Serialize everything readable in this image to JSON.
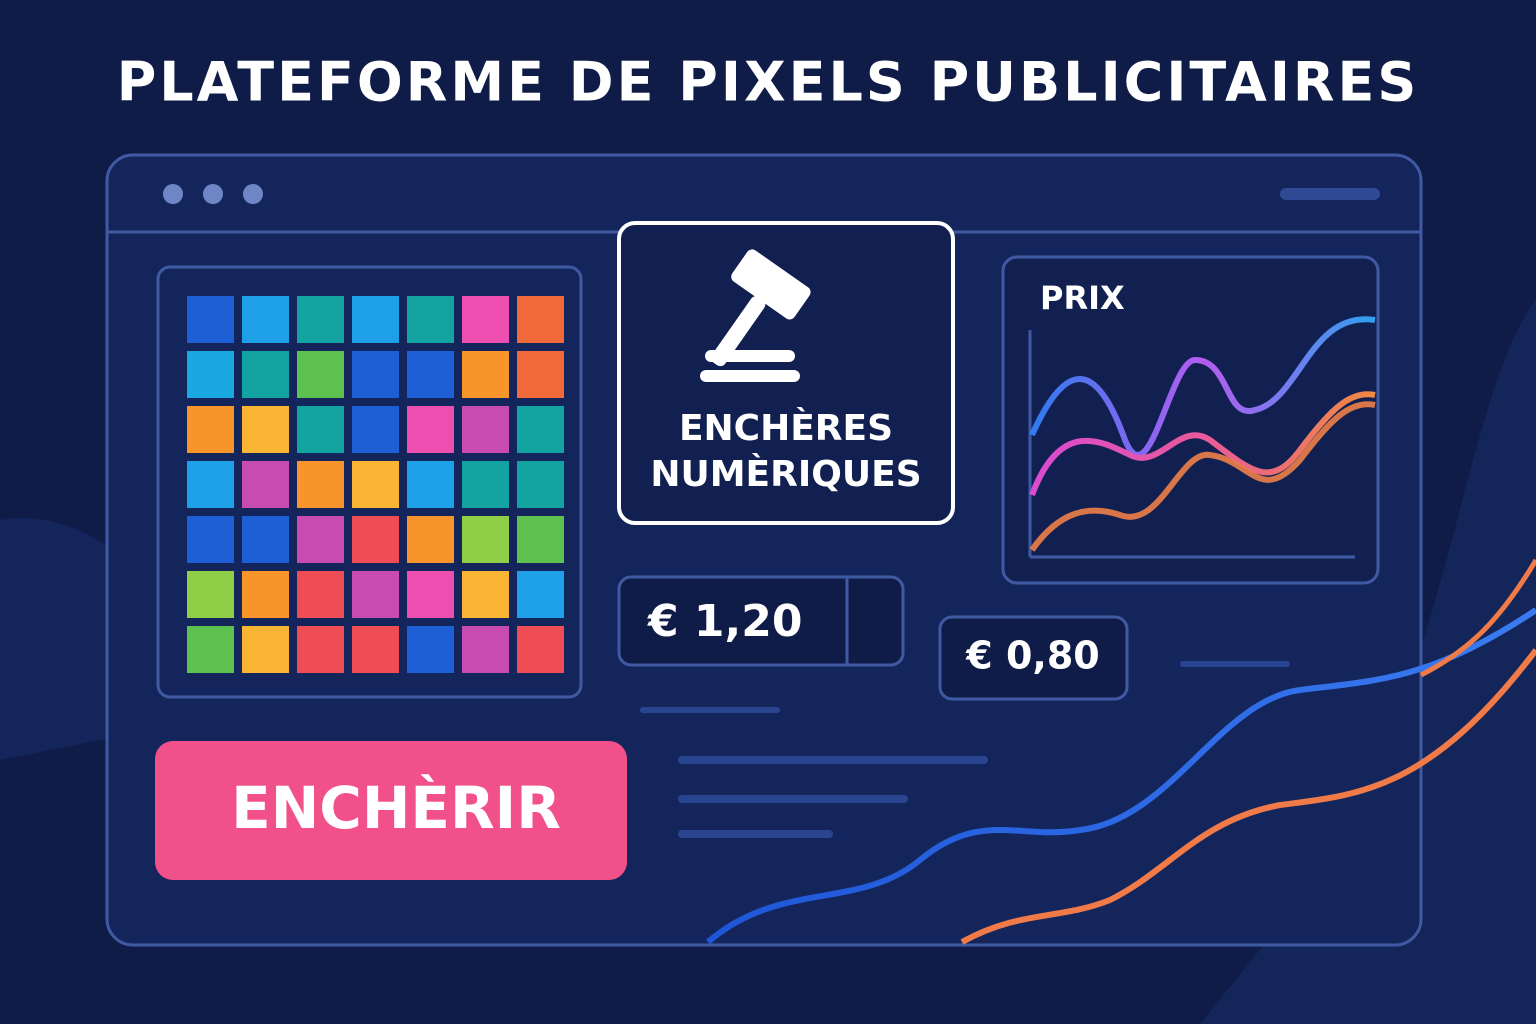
{
  "header": {
    "title": "PLATEFORME DE PIXELS PUBLICITAIRES"
  },
  "auction_card": {
    "lines": [
      "ENCHÈRES",
      "NUMÈRIQUES"
    ]
  },
  "price_chart": {
    "label": "PRIX"
  },
  "prices": [
    "€ 1,20",
    "€ 0,80"
  ],
  "bid_button": {
    "label": "ENCHÈRIR"
  }
}
